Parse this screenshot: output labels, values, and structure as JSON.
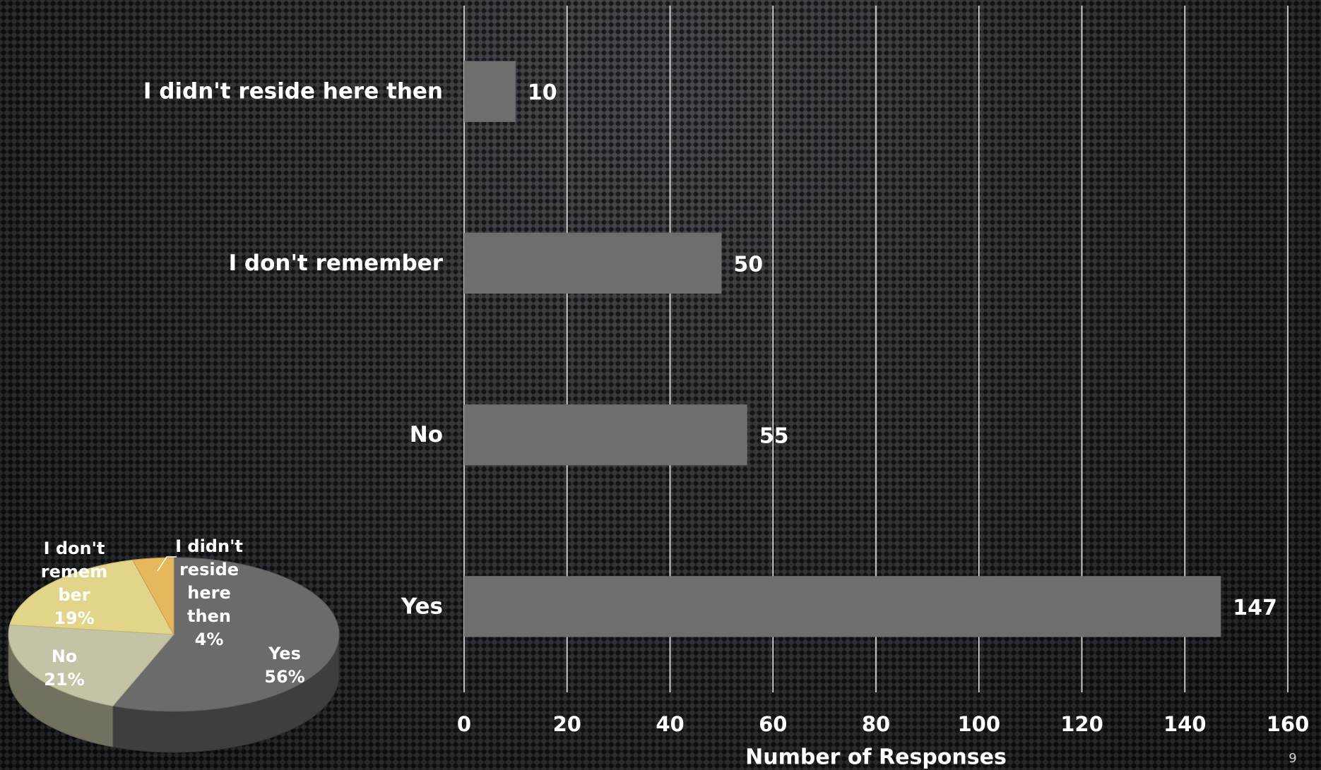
{
  "chart_data": [
    {
      "type": "bar",
      "orientation": "horizontal",
      "categories": [
        "I didn't reside here then",
        "I don't remember",
        "No",
        "Yes"
      ],
      "values": [
        10,
        50,
        55,
        147
      ],
      "data_labels": [
        "10",
        "50",
        "55",
        "147"
      ],
      "xlabel": "Number of Responses",
      "xlim": [
        0,
        160
      ],
      "xticks": [
        0,
        20,
        40,
        60,
        80,
        100,
        120,
        140,
        160
      ],
      "grid": "vertical",
      "bar_color": "#6e6e6e"
    },
    {
      "type": "pie",
      "style": "3d",
      "slices": [
        {
          "label_lines": [
            "Yes",
            "56%"
          ],
          "value": 56,
          "color": "#6b6b6b"
        },
        {
          "label_lines": [
            "No",
            "21%"
          ],
          "value": 21,
          "color": "#c4c3a6"
        },
        {
          "label_lines": [
            "I don't",
            "remem",
            "ber",
            "19%"
          ],
          "value": 19,
          "color": "#e2d488"
        },
        {
          "label_lines": [
            "I didn't",
            "reside",
            "here",
            "then",
            "4%"
          ],
          "value": 4,
          "color": "#e6b85e"
        }
      ]
    }
  ],
  "page_number": "9"
}
